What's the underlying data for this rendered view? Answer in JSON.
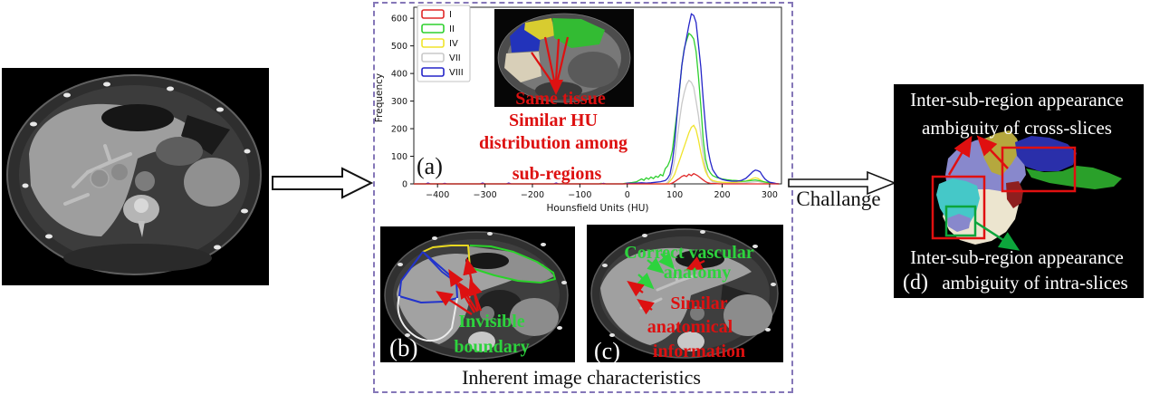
{
  "flow": {
    "challenge_label": "Challange"
  },
  "middle_box": {
    "caption": "Inherent image characteristics"
  },
  "panel_a": {
    "label": "(a)",
    "same_tissue": "Same tissue",
    "ann_line1": "Similar HU",
    "ann_line2": "distribution among",
    "ann_line3": "sub-regions"
  },
  "panel_b": {
    "label": "(b)",
    "ann_line1": "Invisible",
    "ann_line2": "boundary"
  },
  "panel_c": {
    "label": "(c)",
    "green_line1": "Correct vascular",
    "green_line2": "anatomy",
    "red_line1": "Similar",
    "red_line2": "anatomical",
    "red_line3": "information"
  },
  "panel_d": {
    "label": "(d)",
    "top_line1": "Inter-sub-region appearance",
    "top_line2": "ambiguity of cross-slices",
    "bottom_line1": "Inter-sub-region appearance",
    "bottom_line2": "ambiguity of intra-slices"
  },
  "colors": {
    "dashed_border": "#8577b8",
    "annotation_red": "#dd1010",
    "annotation_green": "#2dd33d",
    "highlight_rect_red": "#e01010",
    "highlight_rect_green": "#0ca53c",
    "panel_d_regions": {
      "periwinkle": "#8888cc",
      "khaki": "#b5a83e",
      "dark_blue": "#2a2faa",
      "green": "#2aa02a",
      "cyan": "#45c8c8",
      "cream": "#ece5cf",
      "dark_red": "#8e1f1f"
    }
  },
  "chart_data": {
    "type": "line",
    "title": "",
    "xlabel": "Hounsfield Units (HU)",
    "ylabel": "Frequency",
    "xlim": [
      -450,
      325
    ],
    "ylim": [
      0,
      640
    ],
    "xticks": [
      -400,
      -300,
      -200,
      -100,
      0,
      100,
      200,
      300
    ],
    "yticks": [
      0,
      100,
      200,
      300,
      400,
      500,
      600
    ],
    "grid": false,
    "legend_position": "upper-left",
    "draw_order": [
      "VII",
      "IV",
      "II",
      "VIII",
      "I"
    ],
    "series": [
      {
        "name": "I",
        "color": "#e02828",
        "points": [
          [
            -450,
            0
          ],
          [
            90,
            0
          ],
          [
            95,
            3
          ],
          [
            100,
            8
          ],
          [
            105,
            14
          ],
          [
            110,
            20
          ],
          [
            115,
            27
          ],
          [
            120,
            31
          ],
          [
            125,
            27
          ],
          [
            130,
            35
          ],
          [
            135,
            30
          ],
          [
            140,
            37
          ],
          [
            145,
            33
          ],
          [
            150,
            28
          ],
          [
            155,
            21
          ],
          [
            160,
            14
          ],
          [
            165,
            8
          ],
          [
            170,
            4
          ],
          [
            175,
            2
          ],
          [
            185,
            1
          ],
          [
            195,
            0
          ],
          [
            320,
            0
          ]
        ]
      },
      {
        "name": "II",
        "color": "#2fd02f",
        "points": [
          [
            -450,
            0
          ],
          [
            -140,
            0
          ],
          [
            -135,
            2
          ],
          [
            -130,
            0
          ],
          [
            -60,
            0
          ],
          [
            -55,
            2
          ],
          [
            -50,
            0
          ],
          [
            -10,
            0
          ],
          [
            -5,
            2
          ],
          [
            0,
            3
          ],
          [
            10,
            5
          ],
          [
            20,
            8
          ],
          [
            25,
            13
          ],
          [
            30,
            18
          ],
          [
            35,
            13
          ],
          [
            40,
            22
          ],
          [
            45,
            17
          ],
          [
            50,
            25
          ],
          [
            55,
            19
          ],
          [
            60,
            28
          ],
          [
            65,
            24
          ],
          [
            70,
            34
          ],
          [
            75,
            29
          ],
          [
            80,
            55
          ],
          [
            85,
            65
          ],
          [
            90,
            85
          ],
          [
            95,
            120
          ],
          [
            100,
            190
          ],
          [
            105,
            260
          ],
          [
            110,
            340
          ],
          [
            115,
            430
          ],
          [
            120,
            490
          ],
          [
            125,
            520
          ],
          [
            130,
            545
          ],
          [
            135,
            538
          ],
          [
            140,
            525
          ],
          [
            145,
            480
          ],
          [
            150,
            390
          ],
          [
            155,
            285
          ],
          [
            160,
            160
          ],
          [
            165,
            90
          ],
          [
            170,
            55
          ],
          [
            175,
            40
          ],
          [
            180,
            30
          ],
          [
            190,
            22
          ],
          [
            200,
            18
          ],
          [
            210,
            15
          ],
          [
            220,
            13
          ],
          [
            230,
            12
          ],
          [
            240,
            10
          ],
          [
            250,
            10
          ],
          [
            260,
            12
          ],
          [
            270,
            14
          ],
          [
            280,
            11
          ],
          [
            290,
            7
          ],
          [
            300,
            4
          ],
          [
            310,
            2
          ],
          [
            315,
            0
          ],
          [
            320,
            0
          ]
        ]
      },
      {
        "name": "IV",
        "color": "#f0e42c",
        "points": [
          [
            -450,
            0
          ],
          [
            85,
            0
          ],
          [
            90,
            10
          ],
          [
            95,
            20
          ],
          [
            100,
            35
          ],
          [
            105,
            60
          ],
          [
            110,
            85
          ],
          [
            115,
            110
          ],
          [
            120,
            135
          ],
          [
            125,
            160
          ],
          [
            130,
            185
          ],
          [
            135,
            205
          ],
          [
            140,
            212
          ],
          [
            145,
            196
          ],
          [
            150,
            160
          ],
          [
            155,
            115
          ],
          [
            160,
            75
          ],
          [
            165,
            45
          ],
          [
            170,
            28
          ],
          [
            175,
            18
          ],
          [
            180,
            12
          ],
          [
            190,
            8
          ],
          [
            200,
            6
          ],
          [
            210,
            5
          ],
          [
            220,
            5
          ],
          [
            230,
            6
          ],
          [
            240,
            8
          ],
          [
            250,
            10
          ],
          [
            255,
            13
          ],
          [
            260,
            16
          ],
          [
            265,
            20
          ],
          [
            270,
            22
          ],
          [
            275,
            20
          ],
          [
            280,
            15
          ],
          [
            285,
            10
          ],
          [
            290,
            6
          ],
          [
            300,
            3
          ],
          [
            310,
            1
          ],
          [
            320,
            0
          ]
        ]
      },
      {
        "name": "VII",
        "color": "#c8c8c8",
        "points": [
          [
            -450,
            0
          ],
          [
            80,
            0
          ],
          [
            85,
            5
          ],
          [
            90,
            20
          ],
          [
            95,
            45
          ],
          [
            100,
            90
          ],
          [
            105,
            160
          ],
          [
            110,
            230
          ],
          [
            115,
            290
          ],
          [
            120,
            330
          ],
          [
            125,
            360
          ],
          [
            130,
            375
          ],
          [
            135,
            368
          ],
          [
            140,
            350
          ],
          [
            145,
            300
          ],
          [
            150,
            248
          ],
          [
            155,
            178
          ],
          [
            160,
            108
          ],
          [
            165,
            58
          ],
          [
            170,
            30
          ],
          [
            175,
            15
          ],
          [
            180,
            8
          ],
          [
            190,
            4
          ],
          [
            200,
            3
          ],
          [
            220,
            2
          ],
          [
            240,
            3
          ],
          [
            250,
            4
          ],
          [
            260,
            6
          ],
          [
            270,
            8
          ],
          [
            275,
            9
          ],
          [
            280,
            7
          ],
          [
            285,
            5
          ],
          [
            290,
            3
          ],
          [
            300,
            1
          ],
          [
            310,
            0
          ],
          [
            320,
            0
          ]
        ]
      },
      {
        "name": "VIII",
        "color": "#2525c8",
        "points": [
          [
            -450,
            0
          ],
          [
            -425,
            0
          ],
          [
            -420,
            3
          ],
          [
            -415,
            0
          ],
          [
            -390,
            0
          ],
          [
            -385,
            2
          ],
          [
            -380,
            0
          ],
          [
            -310,
            0
          ],
          [
            -305,
            3
          ],
          [
            -300,
            0
          ],
          [
            -255,
            0
          ],
          [
            -250,
            3
          ],
          [
            -245,
            0
          ],
          [
            -155,
            0
          ],
          [
            -150,
            3
          ],
          [
            -145,
            0
          ],
          [
            -55,
            0
          ],
          [
            -50,
            2
          ],
          [
            -45,
            0
          ],
          [
            -5,
            0
          ],
          [
            0,
            3
          ],
          [
            10,
            2
          ],
          [
            20,
            3
          ],
          [
            30,
            4
          ],
          [
            40,
            3
          ],
          [
            50,
            4
          ],
          [
            60,
            6
          ],
          [
            70,
            8
          ],
          [
            80,
            12
          ],
          [
            85,
            20
          ],
          [
            90,
            35
          ],
          [
            95,
            80
          ],
          [
            100,
            150
          ],
          [
            105,
            250
          ],
          [
            110,
            345
          ],
          [
            115,
            430
          ],
          [
            120,
            485
          ],
          [
            125,
            530
          ],
          [
            130,
            575
          ],
          [
            135,
            616
          ],
          [
            140,
            610
          ],
          [
            145,
            585
          ],
          [
            150,
            505
          ],
          [
            155,
            425
          ],
          [
            160,
            305
          ],
          [
            165,
            205
          ],
          [
            170,
            125
          ],
          [
            175,
            82
          ],
          [
            180,
            52
          ],
          [
            185,
            38
          ],
          [
            190,
            26
          ],
          [
            195,
            20
          ],
          [
            200,
            16
          ],
          [
            210,
            12
          ],
          [
            220,
            10
          ],
          [
            230,
            10
          ],
          [
            240,
            12
          ],
          [
            250,
            20
          ],
          [
            255,
            28
          ],
          [
            260,
            36
          ],
          [
            265,
            45
          ],
          [
            270,
            50
          ],
          [
            275,
            48
          ],
          [
            280,
            44
          ],
          [
            285,
            30
          ],
          [
            290,
            18
          ],
          [
            295,
            11
          ],
          [
            300,
            6
          ],
          [
            310,
            3
          ],
          [
            315,
            1
          ],
          [
            320,
            0
          ]
        ]
      }
    ]
  }
}
